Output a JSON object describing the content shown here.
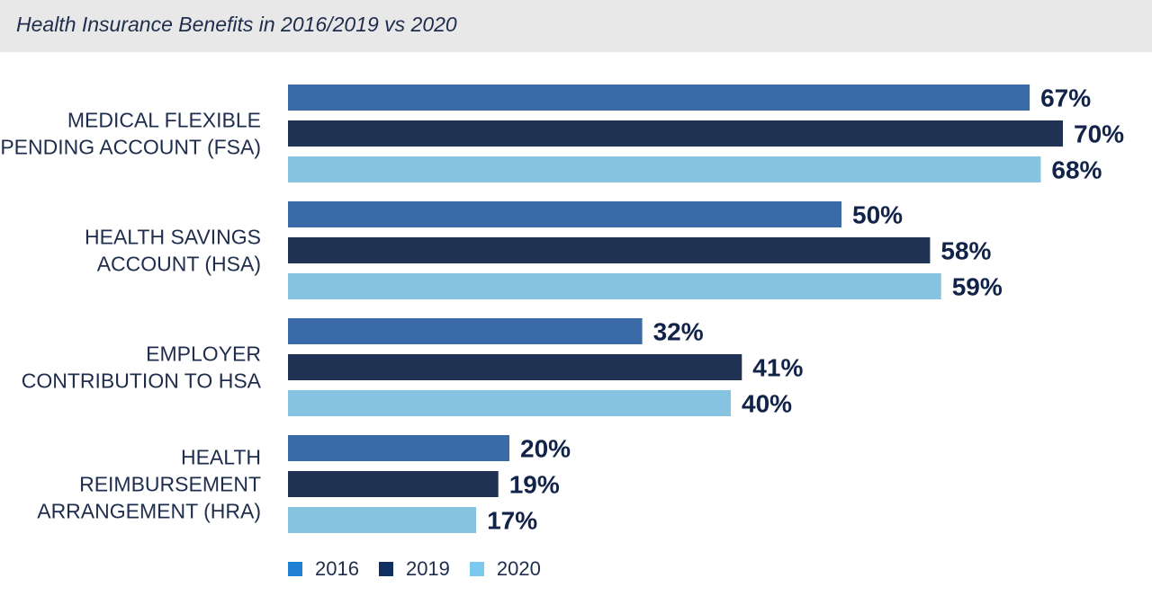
{
  "chart_data": {
    "type": "bar",
    "orientation": "horizontal",
    "title": "Health Insurance Benefits in 2016/2019 vs 2020",
    "categories": [
      [
        "MEDICAL FLEXIBLE",
        "SPENDING ACCOUNT (FSA)"
      ],
      [
        "HEALTH SAVINGS",
        "ACCOUNT (HSA)"
      ],
      [
        "EMPLOYER",
        "CONTRIBUTION TO HSA"
      ],
      [
        "HEALTH",
        "REIMBURSEMENT",
        "ARRANGEMENT (HRA)"
      ]
    ],
    "series": [
      {
        "name": "2016",
        "values": [
          67,
          50,
          32,
          20
        ],
        "color": "#3a6ba8"
      },
      {
        "name": "2019",
        "values": [
          70,
          58,
          41,
          19
        ],
        "color": "#213354"
      },
      {
        "name": "2020",
        "values": [
          68,
          59,
          40,
          17
        ],
        "color": "#86c3e0"
      }
    ],
    "value_suffix": "%",
    "legend_position": "bottom-left",
    "legend_colors": [
      "#1f7fd1",
      "#0f2f63",
      "#7cc8ef"
    ],
    "grid": false
  }
}
